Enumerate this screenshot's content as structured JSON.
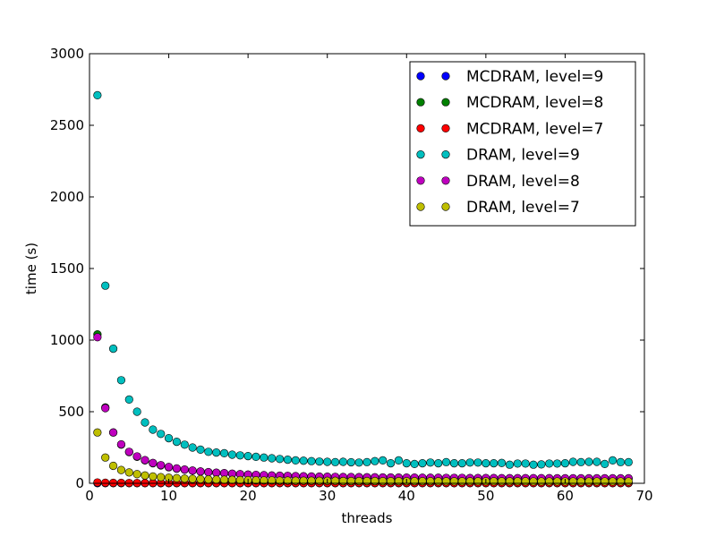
{
  "chart_data": {
    "type": "scatter",
    "xlabel": "threads",
    "ylabel": "time (s)",
    "xlim": [
      0,
      70
    ],
    "ylim": [
      0,
      3000
    ],
    "xticks": [
      0,
      10,
      20,
      30,
      40,
      50,
      60,
      70
    ],
    "yticks": [
      0,
      500,
      1000,
      1500,
      2000,
      2500,
      3000
    ],
    "grid": false,
    "legend_position": "top-right",
    "x": [
      1,
      2,
      3,
      4,
      5,
      6,
      7,
      8,
      9,
      10,
      11,
      12,
      13,
      14,
      15,
      16,
      17,
      18,
      19,
      20,
      21,
      22,
      23,
      24,
      25,
      26,
      27,
      28,
      29,
      30,
      31,
      32,
      33,
      34,
      35,
      36,
      37,
      38,
      39,
      40,
      41,
      42,
      43,
      44,
      45,
      46,
      47,
      48,
      49,
      50,
      51,
      52,
      53,
      54,
      55,
      56,
      57,
      58,
      59,
      60,
      61,
      62,
      63,
      64,
      65,
      66,
      67,
      68
    ],
    "series": [
      {
        "name": "MCDRAM, level=9",
        "color": "#0000ff",
        "values": [
          1,
          1,
          1,
          1,
          1,
          1,
          1,
          1,
          1,
          1,
          1,
          1,
          1,
          1,
          1,
          1,
          1,
          1,
          1,
          1,
          1,
          1,
          1,
          1,
          1,
          1,
          1,
          1,
          1,
          1,
          1,
          1,
          1,
          1,
          1,
          1,
          1,
          1,
          1,
          1,
          1,
          1,
          1,
          1,
          1,
          1,
          1,
          1,
          1,
          1,
          1,
          1,
          1,
          1,
          1,
          1,
          1,
          1,
          1,
          1,
          1,
          1,
          1,
          1,
          1,
          1,
          1,
          1
        ]
      },
      {
        "name": "MCDRAM, level=8",
        "color": "#008000",
        "values": [
          1040,
          530,
          355,
          270,
          218,
          185,
          160,
          140,
          125,
          112,
          102,
          95,
          88,
          82,
          77,
          73,
          70,
          66,
          63,
          60,
          58,
          56,
          54,
          52,
          51,
          49,
          48,
          47,
          46,
          45,
          44,
          43,
          42,
          42,
          41,
          40,
          40,
          39,
          39,
          38,
          38,
          37,
          37,
          37,
          36,
          36,
          36,
          35,
          35,
          35,
          35,
          34,
          34,
          34,
          34,
          34,
          34,
          33,
          33,
          33,
          33,
          33,
          33,
          33,
          33,
          33,
          33,
          33
        ]
      },
      {
        "name": "MCDRAM, level=7",
        "color": "#ff0000",
        "values": [
          6,
          4,
          3,
          3,
          2,
          2,
          2,
          2,
          2,
          2,
          2,
          2,
          2,
          2,
          2,
          2,
          2,
          2,
          2,
          2,
          2,
          2,
          2,
          2,
          2,
          2,
          2,
          2,
          2,
          2,
          2,
          2,
          2,
          2,
          2,
          2,
          2,
          2,
          2,
          2,
          2,
          2,
          2,
          2,
          2,
          2,
          2,
          2,
          2,
          2,
          2,
          2,
          2,
          2,
          2,
          2,
          2,
          2,
          2,
          2,
          2,
          2,
          2,
          2,
          2,
          2,
          2,
          2
        ]
      },
      {
        "name": "DRAM, level=9",
        "color": "#00bfbf",
        "values": [
          2710,
          1380,
          940,
          720,
          585,
          500,
          425,
          375,
          345,
          315,
          290,
          270,
          250,
          235,
          220,
          215,
          210,
          200,
          195,
          190,
          185,
          180,
          175,
          170,
          165,
          160,
          158,
          155,
          152,
          150,
          148,
          150,
          147,
          145,
          148,
          155,
          160,
          140,
          160,
          140,
          135,
          140,
          145,
          140,
          148,
          140,
          140,
          145,
          145,
          140,
          140,
          142,
          130,
          138,
          138,
          130,
          132,
          138,
          138,
          140,
          150,
          148,
          150,
          150,
          135,
          160,
          148,
          148
        ]
      },
      {
        "name": "DRAM, level=8",
        "color": "#bf00bf",
        "values": [
          1020,
          525,
          355,
          272,
          220,
          188,
          162,
          142,
          127,
          114,
          104,
          96,
          89,
          83,
          78,
          74,
          71,
          67,
          64,
          61,
          59,
          57,
          55,
          53,
          52,
          50,
          49,
          48,
          47,
          46,
          45,
          44,
          44,
          43,
          42,
          42,
          41,
          41,
          40,
          40,
          40,
          39,
          39,
          39,
          38,
          38,
          38,
          37,
          37,
          37,
          37,
          36,
          36,
          36,
          36,
          36,
          36,
          36,
          35,
          35,
          35,
          35,
          35,
          35,
          35,
          35,
          35,
          35
        ]
      },
      {
        "name": "DRAM, level=7",
        "color": "#bfbf00",
        "values": [
          355,
          180,
          122,
          93,
          76,
          64,
          55,
          48,
          43,
          39,
          36,
          33,
          31,
          29,
          27,
          26,
          25,
          24,
          23,
          22,
          21,
          20,
          20,
          19,
          19,
          18,
          18,
          18,
          17,
          17,
          17,
          16,
          16,
          16,
          16,
          16,
          15,
          15,
          15,
          15,
          15,
          15,
          15,
          14,
          14,
          14,
          14,
          14,
          14,
          14,
          14,
          14,
          14,
          14,
          14,
          13,
          13,
          13,
          13,
          13,
          13,
          13,
          13,
          13,
          13,
          13,
          13,
          13
        ]
      }
    ]
  }
}
